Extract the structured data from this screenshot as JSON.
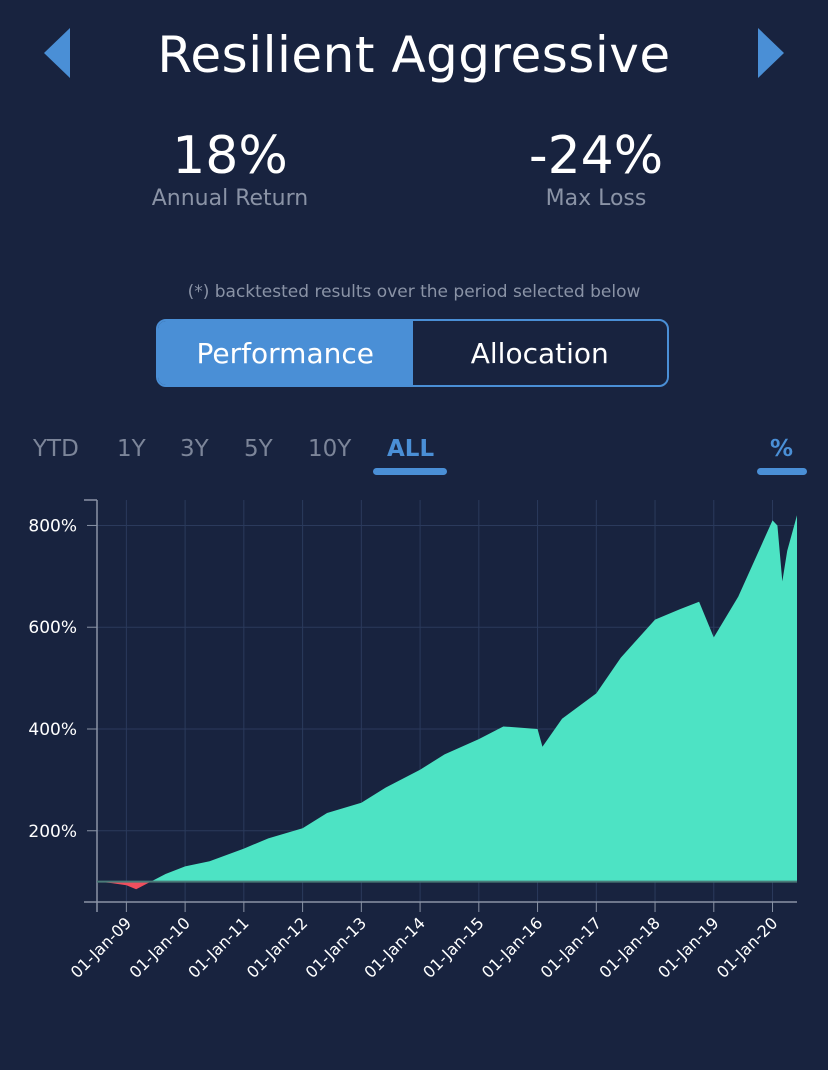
{
  "header": {
    "title": "Resilient Aggressive"
  },
  "stats": [
    {
      "value": "18%",
      "label": "Annual Return"
    },
    {
      "value": "-24%",
      "label": "Max Loss"
    }
  ],
  "note": "(*) backtested results over the period selected below",
  "toggle": {
    "performance": "Performance",
    "allocation": "Allocation",
    "selected": "Performance"
  },
  "periods": [
    "YTD",
    "1Y",
    "3Y",
    "5Y",
    "10Y",
    "ALL"
  ],
  "selected_period": "ALL",
  "unit_toggle": "%",
  "colors": {
    "background": "#18233f",
    "accent": "#4a8fd6",
    "gain_fill": "#4de3c4",
    "loss_fill": "#f04f5e"
  },
  "icons": {
    "prev": "caret-left-icon",
    "next": "caret-right-icon"
  },
  "chart_data": {
    "type": "area",
    "y_ticks": [
      "800%",
      "600%",
      "400%",
      "200%"
    ],
    "x_ticks": [
      "01-Jan-09",
      "01-Jan-10",
      "01-Jan-11",
      "01-Jan-12",
      "01-Jan-13",
      "01-Jan-14",
      "01-Jan-15",
      "01-Jan-16",
      "01-Jan-17",
      "01-Jan-18",
      "01-Jan-19",
      "01-Jan-20"
    ],
    "x_range": [
      "2008-07",
      "2020-06"
    ],
    "ylim": [
      60,
      850
    ],
    "baseline": 100,
    "grid": true,
    "series": [
      {
        "x": [
          "2008-07",
          "2008-10",
          "2009-01",
          "2009-03",
          "2009-06",
          "2009-09",
          "2010-01",
          "2010-06",
          "2011-01",
          "2011-06",
          "2012-01",
          "2012-06",
          "2013-01",
          "2013-06",
          "2014-01",
          "2014-06",
          "2015-01",
          "2015-06",
          "2016-01",
          "2016-02",
          "2016-06",
          "2017-01",
          "2017-06",
          "2018-01",
          "2018-06",
          "2018-10",
          "2019-01",
          "2019-06",
          "2020-01",
          "2020-02",
          "2020-03",
          "2020-04",
          "2020-06"
        ],
        "values": [
          100,
          97,
          93,
          85,
          100,
          115,
          130,
          140,
          165,
          185,
          205,
          235,
          255,
          285,
          320,
          350,
          380,
          405,
          400,
          365,
          420,
          470,
          540,
          615,
          635,
          650,
          580,
          660,
          810,
          800,
          690,
          750,
          820
        ]
      }
    ]
  }
}
